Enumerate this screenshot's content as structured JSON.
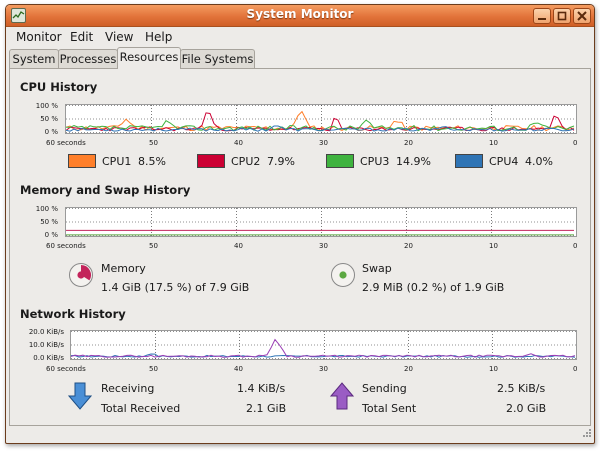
{
  "window": {
    "title": "System Monitor"
  },
  "menubar": {
    "items": [
      "Monitor",
      "Edit",
      "View",
      "Help"
    ]
  },
  "tabs": [
    "System",
    "Processes",
    "Resources",
    "File Systems"
  ],
  "active_tab": "Resources",
  "x_ticks": [
    "60 seconds",
    "50",
    "40",
    "30",
    "20",
    "10",
    "0"
  ],
  "cpu": {
    "title": "CPU History",
    "y_ticks": [
      "100 %",
      "50 %",
      "0 %"
    ],
    "legend": [
      {
        "name": "CPU1",
        "value": "8.5%",
        "color": "#ff7f2a"
      },
      {
        "name": "CPU2",
        "value": "7.9%",
        "color": "#cc0033"
      },
      {
        "name": "CPU3",
        "value": "14.9%",
        "color": "#3fb33f"
      },
      {
        "name": "CPU4",
        "value": "4.0%",
        "color": "#2f74b5"
      }
    ]
  },
  "memory": {
    "title": "Memory and Swap History",
    "y_ticks": [
      "100 %",
      "50 %",
      "0 %"
    ],
    "memory_label": "Memory",
    "memory_value": "1.4 GiB (17.5 %) of 7.9 GiB",
    "memory_color": "#c3245b",
    "swap_label": "Swap",
    "swap_value": "2.9 MiB (0.2 %) of 1.9 GiB",
    "swap_color": "#5ca842"
  },
  "network": {
    "title": "Network History",
    "y_ticks": [
      "20.0 KiB/s",
      "10.0 KiB/s",
      "0.0 KiB/s"
    ],
    "receiving_label": "Receiving",
    "receiving_value": "1.4 KiB/s",
    "total_received_label": "Total Received",
    "total_received_value": "2.1 GiB",
    "sending_label": "Sending",
    "sending_value": "2.5 KiB/s",
    "total_sent_label": "Total Sent",
    "total_sent_value": "2.0 GiB",
    "receiving_color": "#2f74b5",
    "sending_color": "#9a3fb5"
  }
}
